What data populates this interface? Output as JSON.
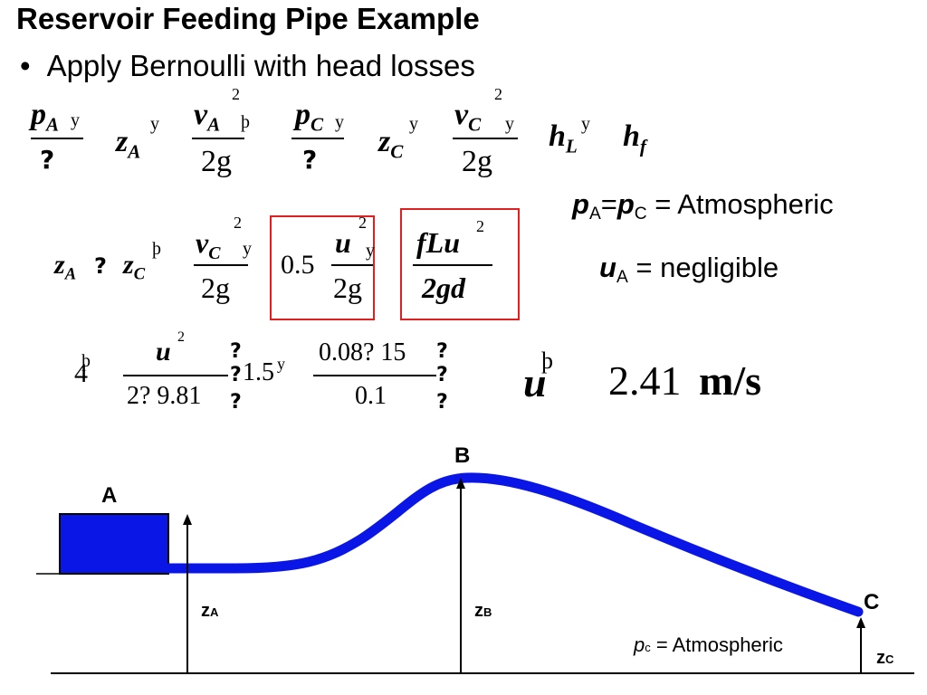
{
  "slide": {
    "title": "Reservoir Feeding Pipe Example",
    "bullet": "Apply Bernoulli with head losses"
  },
  "equation1": {
    "pA": "p",
    "pA_sub": "A",
    "gamma_char": "?",
    "zA": "z",
    "zA_sub": "A",
    "vA": "v",
    "vA_sub": "A",
    "sq": "2",
    "two_g": "2g",
    "pC": "p",
    "pC_sub": "C",
    "zC": "z",
    "zC_sub": "C",
    "vC": "v",
    "vC_sub": "C",
    "hL": "h",
    "hL_sub": "L",
    "hf": "h",
    "hf_sub": "f",
    "op_plus": "y",
    "op_eq": "þ"
  },
  "equation2": {
    "zA": "z",
    "zA_sub": "A",
    "op_minus": "?",
    "zC": "z",
    "zC_sub": "C",
    "op_eq": "þ",
    "vC": "v",
    "vC_sub": "C",
    "sq": "2",
    "two_g": "2g",
    "op_plus": "y",
    "coef": "0.5",
    "u": "u",
    "fLu": "fLu",
    "two_gd": "2gd"
  },
  "equation3": {
    "four": "4",
    "op_eq": "þ",
    "u": "u",
    "sq": "2",
    "den": "2? 9.81",
    "bracket": "?",
    "one_five": "1.5",
    "op_plus": "y",
    "num": "0.08? 15",
    "den2": "0.1"
  },
  "result": {
    "u": "u",
    "op_eq": "þ",
    "value": "2.41",
    "unit": "m/s"
  },
  "notes": {
    "p_eq_var1": "p",
    "p_eq_sub1": "A",
    "p_eq_mid": "=",
    "p_eq_var2": "p",
    "p_eq_sub2": "C",
    "p_eq_rest": " = Atmospheric",
    "u_var": "u",
    "u_sub": "A",
    "u_rest": " = negligible"
  },
  "diagram": {
    "label_A": "A",
    "label_B": "B",
    "label_C": "C",
    "zA": "z",
    "zA_sub": "A",
    "zB": "z",
    "zB_sub": "B",
    "zC": "z",
    "zC_sub": "C",
    "pc_var": "p",
    "pc_sub": "c",
    "pc_rest": " = Atmospheric",
    "pipe_color": "#0a16e6"
  }
}
